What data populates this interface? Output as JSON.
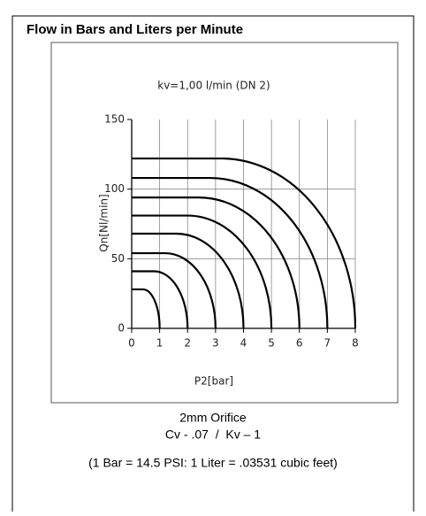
{
  "title": "Flow in Bars and Liters per Minute",
  "chart_data": {
    "type": "line",
    "subtitle": "kv=1,00 l/min (DN 2)",
    "x_label": "P2[bar]",
    "y_label": "Qn[Nl/min]",
    "xlim": [
      0,
      8
    ],
    "xticks": [
      0,
      1,
      2,
      3,
      4,
      5,
      6,
      7,
      8
    ],
    "ylim": [
      0,
      150
    ],
    "yticks": [
      0,
      50,
      100,
      150
    ],
    "grid": true,
    "color": "#000000",
    "curves": [
      {
        "p1": 1,
        "max_flow": 28
      },
      {
        "p1": 2,
        "max_flow": 41
      },
      {
        "p1": 3,
        "max_flow": 54
      },
      {
        "p1": 4,
        "max_flow": 68
      },
      {
        "p1": 5,
        "max_flow": 81
      },
      {
        "p1": 6,
        "max_flow": 94
      },
      {
        "p1": 7,
        "max_flow": 108
      },
      {
        "p1": 8,
        "max_flow": 122
      }
    ]
  },
  "notes": [
    "2mm Orifice",
    "Cv - .07  /  Kv – 1",
    "(1 Bar = 14.5 PSI: 1 Liter = .03531 cubic feet)"
  ]
}
